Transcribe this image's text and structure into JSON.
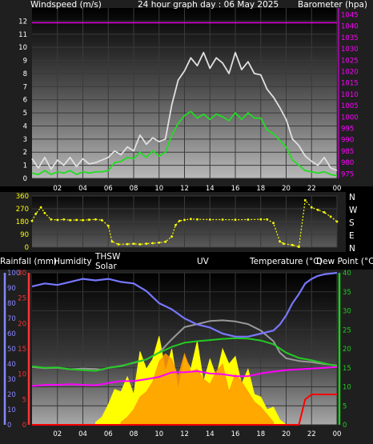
{
  "header": {
    "windspeed_label": "Windspeed (m/s)",
    "graph_title": "24 hour graph day : 06 May 2025",
    "barometer_label": "Barometer (hpa)"
  },
  "direction_labels": [
    "N",
    "W",
    "S",
    "E",
    "N"
  ],
  "bottom_labels": {
    "rain": "Rainfall (mm)",
    "humidity": "Humidity",
    "thsw": "THSW",
    "solar": "Solar",
    "uv": "UV",
    "temperature": "Temperature (°C)",
    "dewpoint": "Dew Point (°C)"
  },
  "colors": {
    "gust": "#e0e0e0",
    "windspeed": "#22dd22",
    "barometer": "#ff00ff",
    "direction": "#ffff00",
    "humidity": "#7777ff",
    "solar": "#ffff00",
    "uv": "#ff9900",
    "temperature": "#ff00ff",
    "dewpoint": "#22cc22",
    "thsw": "#999999",
    "rain": "#ff0000",
    "rain_axis": "#8888ff",
    "uv_axis": "#ff3333",
    "temp_axis": "#22cc22"
  },
  "chart_data": [
    {
      "type": "line",
      "name": "wind",
      "title": "24 hour graph day : 06 May 2025",
      "ylabel": "Windspeed (m/s)",
      "y2label": "Barometer (hpa)",
      "xlim": [
        0,
        24
      ],
      "x_ticks": [
        "02",
        "04",
        "06",
        "08",
        "10",
        "12",
        "14",
        "16",
        "18",
        "20",
        "22",
        "00"
      ],
      "ylim": [
        0,
        13
      ],
      "y_ticks": [
        0,
        1,
        2,
        3,
        4,
        5,
        6,
        7,
        8,
        9,
        10,
        11,
        12
      ],
      "y2lim": [
        973,
        1048
      ],
      "y2_ticks": [
        975,
        980,
        985,
        990,
        995,
        1000,
        1005,
        1010,
        1015,
        1020,
        1025,
        1030,
        1035,
        1040,
        1045
      ],
      "series": [
        {
          "key": "gust",
          "x": [
            0,
            0.5,
            1,
            1.5,
            2,
            2.5,
            3,
            3.5,
            4,
            4.5,
            5,
            5.5,
            6,
            6.5,
            7,
            7.5,
            8,
            8.5,
            9,
            9.5,
            10,
            10.5,
            11,
            11.5,
            12,
            12.5,
            13,
            13.5,
            14,
            14.5,
            15,
            15.5,
            16,
            16.5,
            17,
            17.5,
            18,
            18.5,
            19,
            19.5,
            20,
            20.5,
            21,
            21.5,
            22,
            22.5,
            23,
            23.5,
            24
          ],
          "values": [
            1.5,
            0.8,
            1.6,
            0.7,
            1.4,
            1.0,
            1.6,
            0.9,
            1.5,
            1.1,
            1.2,
            1.4,
            1.6,
            2.1,
            1.8,
            2.4,
            2.1,
            3.3,
            2.6,
            3.1,
            2.8,
            3.0,
            5.6,
            7.5,
            8.2,
            9.2,
            8.6,
            9.6,
            8.4,
            9.2,
            8.8,
            8.0,
            9.6,
            8.3,
            8.9,
            8.0,
            7.9,
            6.8,
            6.2,
            5.4,
            4.5,
            3.0,
            2.5,
            1.7,
            1.3,
            1.0,
            1.6,
            0.8,
            0.6
          ]
        },
        {
          "key": "windspeed",
          "x": [
            0,
            0.5,
            1,
            1.5,
            2,
            2.5,
            3,
            3.5,
            4,
            4.5,
            5,
            5.5,
            6,
            6.5,
            7,
            7.5,
            8,
            8.5,
            9,
            9.5,
            10,
            10.5,
            11,
            11.5,
            12,
            12.5,
            13,
            13.5,
            14,
            14.5,
            15,
            15.5,
            16,
            16.5,
            17,
            17.5,
            18,
            18.5,
            19,
            19.5,
            20,
            20.5,
            21,
            21.5,
            22,
            22.5,
            23,
            23.5,
            24
          ],
          "values": [
            0.4,
            0.3,
            0.6,
            0.3,
            0.5,
            0.4,
            0.6,
            0.3,
            0.5,
            0.4,
            0.5,
            0.5,
            0.6,
            1.2,
            1.3,
            1.6,
            1.5,
            2.0,
            1.6,
            2.1,
            1.7,
            2.0,
            3.3,
            4.2,
            4.8,
            5.1,
            4.6,
            4.9,
            4.5,
            4.9,
            4.7,
            4.4,
            5.0,
            4.5,
            5.0,
            4.6,
            4.6,
            3.7,
            3.4,
            2.9,
            2.4,
            1.4,
            1.0,
            0.6,
            0.5,
            0.4,
            0.5,
            0.3,
            0.2
          ]
        },
        {
          "key": "barometer",
          "axis": "y2",
          "x": [
            0,
            24
          ],
          "values": [
            1041.5,
            1041.5
          ]
        }
      ]
    },
    {
      "type": "scatter",
      "name": "direction",
      "xlim": [
        0,
        24
      ],
      "ylim": [
        0,
        360
      ],
      "y_ticks": [
        0,
        90,
        180,
        270,
        360
      ],
      "series": [
        {
          "key": "direction",
          "x": [
            0,
            0.3,
            0.7,
            1,
            1.5,
            2,
            2.5,
            3,
            3.5,
            4,
            4.5,
            5,
            5.5,
            6,
            6.3,
            6.8,
            7.5,
            8,
            8.5,
            9,
            9.5,
            10,
            10.5,
            11,
            11.3,
            11.6,
            12,
            12.5,
            13,
            14,
            15,
            16,
            17,
            18,
            18.5,
            19,
            19.5,
            19.8,
            20.5,
            21,
            21.5,
            22,
            22.5,
            23,
            23.5,
            24
          ],
          "values": [
            185,
            235,
            280,
            240,
            195,
            192,
            195,
            190,
            192,
            190,
            193,
            195,
            190,
            150,
            40,
            20,
            22,
            24,
            20,
            25,
            28,
            32,
            38,
            75,
            155,
            185,
            192,
            198,
            196,
            194,
            194,
            193,
            194,
            196,
            195,
            170,
            40,
            25,
            15,
            2,
            330,
            280,
            262,
            245,
            215,
            180
          ]
        }
      ]
    },
    {
      "type": "line",
      "name": "weather",
      "xlim": [
        0,
        24
      ],
      "x_ticks": [
        "02",
        "04",
        "06",
        "08",
        "10",
        "12",
        "14",
        "16",
        "18",
        "20",
        "22",
        "00"
      ],
      "rain_ticks": [
        0,
        10,
        20,
        30,
        40,
        50,
        60,
        70,
        80,
        90,
        100
      ],
      "rain_lim": [
        0,
        100
      ],
      "uv_ticks": [
        0,
        5,
        10,
        15,
        20,
        25,
        30
      ],
      "uv_lim": [
        0,
        30
      ],
      "temp_ticks": [
        0,
        5,
        10,
        15,
        20,
        25,
        30,
        35,
        40
      ],
      "temp_lim": [
        0,
        40
      ],
      "series": [
        {
          "key": "humidity",
          "x": [
            0,
            1,
            2,
            3,
            4,
            5,
            6,
            7,
            8,
            9,
            10,
            11,
            12,
            13,
            14,
            15,
            16,
            17,
            18,
            19,
            19.5,
            20,
            20.5,
            21,
            21.5,
            22,
            22.5,
            23,
            24
          ],
          "values": [
            91,
            93,
            92,
            94,
            96,
            95,
            96,
            94,
            93,
            88,
            80,
            76,
            70,
            66,
            64,
            60,
            58,
            58,
            60,
            62,
            66,
            72,
            80,
            86,
            93,
            96,
            98,
            99,
            100
          ]
        },
        {
          "key": "temperature",
          "x": [
            0,
            1,
            2,
            3,
            4,
            5,
            6,
            7,
            8,
            9,
            10,
            11,
            12,
            13,
            14,
            15,
            16,
            17,
            18,
            19,
            20,
            21,
            22,
            23,
            24
          ],
          "values": [
            10.2,
            10.5,
            10.5,
            10.7,
            10.5,
            10.4,
            11.0,
            11.5,
            11.5,
            12.0,
            12.6,
            13.8,
            13.8,
            14.1,
            13.5,
            13.3,
            12.8,
            12.8,
            13.5,
            14.0,
            14.4,
            14.6,
            14.8,
            15.0,
            15.2
          ]
        },
        {
          "key": "thsw",
          "x": [
            0,
            1,
            2,
            3,
            4,
            5,
            5.5,
            6,
            7,
            8,
            9,
            10,
            11,
            12,
            13,
            14,
            15,
            16,
            17,
            18,
            19,
            19.5,
            20,
            21,
            22,
            23,
            24
          ],
          "values": [
            15.2,
            14.9,
            15.0,
            14.6,
            14.8,
            14.7,
            14.5,
            15.0,
            15.5,
            16.3,
            17.2,
            19.0,
            22.5,
            25.7,
            26.5,
            27.3,
            27.5,
            27.2,
            26.5,
            24.8,
            22.0,
            19.0,
            17.5,
            16.8,
            16.5,
            16.0,
            15.6
          ]
        },
        {
          "key": "dewpoint",
          "x": [
            0,
            1,
            2,
            3,
            4,
            5,
            6,
            7,
            8,
            9,
            10,
            11,
            12,
            13,
            14,
            15,
            16,
            17,
            18,
            19,
            20,
            21,
            22,
            23,
            24
          ],
          "values": [
            15.4,
            15.0,
            15.1,
            14.6,
            14.4,
            14.2,
            15.0,
            15.4,
            16.4,
            17.2,
            19.0,
            20.5,
            21.6,
            22.0,
            22.3,
            22.6,
            22.8,
            22.7,
            22.2,
            21.2,
            19.0,
            17.6,
            17.0,
            16.2,
            15.4
          ]
        },
        {
          "key": "solar",
          "x": [
            5,
            5.5,
            6,
            6.5,
            7,
            7.5,
            8,
            8.5,
            9,
            9.5,
            10,
            10.5,
            11,
            11.5,
            12,
            12.5,
            13,
            13.5,
            14,
            14.5,
            15,
            15.5,
            16,
            16.5,
            17,
            17.5,
            18,
            18.5,
            19,
            19.5,
            20
          ],
          "values": [
            0.5,
            1.5,
            4.0,
            7.0,
            6.5,
            9.5,
            6.0,
            14.5,
            11.0,
            13.0,
            17.5,
            10.5,
            15.0,
            7.0,
            13.5,
            11.0,
            16.5,
            8.5,
            13.0,
            9.5,
            15.0,
            12.0,
            13.5,
            8.0,
            11.0,
            6.0,
            5.5,
            3.0,
            3.5,
            1.0,
            0
          ]
        },
        {
          "key": "uv",
          "x": [
            7,
            7.5,
            8,
            8.5,
            9,
            9.5,
            10,
            10.5,
            11,
            11.5,
            12,
            12.5,
            13,
            13.5,
            14,
            14.5,
            15,
            15.5,
            16,
            16.5,
            17,
            17.5,
            18,
            18.5,
            19
          ],
          "values": [
            0.5,
            1.5,
            3.0,
            5.5,
            6.5,
            8.5,
            12.5,
            14.0,
            13.0,
            9.5,
            14.0,
            10.5,
            11.0,
            9.0,
            8.0,
            10.5,
            12.0,
            6.5,
            10.0,
            8.5,
            6.5,
            4.5,
            3.5,
            2.0,
            0.5
          ]
        },
        {
          "key": "rain",
          "x": [
            0,
            20.5,
            21,
            21.5,
            22,
            24
          ],
          "values": [
            0,
            0,
            0,
            5,
            6,
            6
          ]
        }
      ]
    }
  ]
}
